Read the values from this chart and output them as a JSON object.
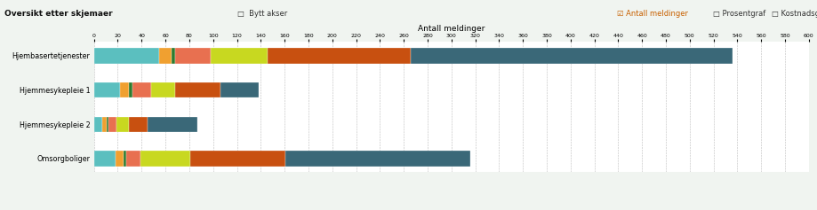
{
  "title": "Oversikt etter skjemaer",
  "xlabel": "Antall meldinger",
  "categories": [
    "Hjembasertetjenester",
    "Hjemmesykepleie 1",
    "Hjemmesykepleie 2",
    "Omsorgboliger"
  ],
  "series": {
    "Hjelpemiddelmelding RAUSE": [
      55,
      22,
      7,
      18
    ],
    "HMS-melding": [
      10,
      7,
      4,
      7
    ],
    "IT-bestillinger": [
      3,
      3,
      1,
      2
    ],
    "IT-melding": [
      30,
      16,
      7,
      12
    ],
    "Legemiddelhåndtering": [
      48,
      20,
      10,
      42
    ],
    "Omsorgsmelding": [
      120,
      38,
      16,
      80
    ],
    "Vaktmestermelding Rakkestad kommune": [
      270,
      32,
      42,
      155
    ]
  },
  "colors": {
    "Hjelpemiddelmelding RAUSE": "#5BBFBF",
    "HMS-melding": "#F0A030",
    "IT-bestillinger": "#2E7B2E",
    "IT-melding": "#E87050",
    "Legemiddelhåndtering": "#C8D820",
    "Omsorgsmelding": "#C85010",
    "Vaktmestermelding Rakkestad kommune": "#3A6878"
  },
  "xlim": [
    0,
    600
  ],
  "xticks": [
    0,
    20,
    40,
    60,
    80,
    100,
    120,
    140,
    160,
    180,
    200,
    220,
    240,
    260,
    280,
    300,
    320,
    340,
    360,
    380,
    400,
    420,
    440,
    460,
    480,
    500,
    520,
    540,
    560,
    580,
    600
  ],
  "bar_height": 0.45,
  "fig_bg": "#f0f4f0",
  "plot_bg": "#ffffff"
}
